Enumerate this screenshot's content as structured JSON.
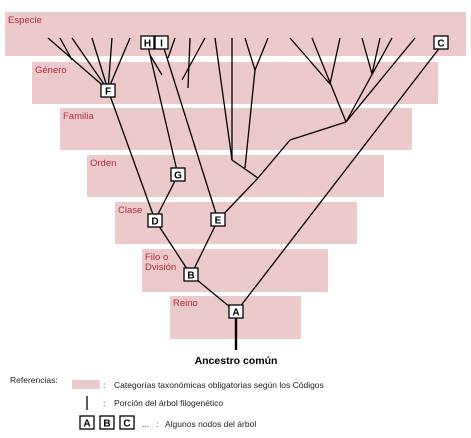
{
  "ranks": [
    {
      "id": "especie",
      "label": "Especie"
    },
    {
      "id": "genero",
      "label": "Género"
    },
    {
      "id": "familia",
      "label": "Familia"
    },
    {
      "id": "orden",
      "label": "Orden"
    },
    {
      "id": "clase",
      "label": "Clase"
    },
    {
      "id": "filo",
      "label_line1": "Filo o",
      "label_line2": "Dvisión"
    },
    {
      "id": "reino",
      "label": "Reino"
    }
  ],
  "nodes": {
    "A": "A",
    "B": "B",
    "C": "C",
    "D": "D",
    "E": "E",
    "F": "F",
    "G": "G",
    "H": "H",
    "I": "I"
  },
  "root_label": "Ancestro común",
  "legend": {
    "title": "Referencias:",
    "band_text": "Categorías taxonómicas obligatorias según los Códigos",
    "line_text": "Porción del árbol filogenético",
    "boxes": [
      "A",
      "B",
      "C"
    ],
    "ellipsis": "...",
    "nodes_text": "Algunos nodos del árbol",
    "colon": ":"
  },
  "colors": {
    "band": "#ecc9cb",
    "rank_label": "#b32b35",
    "line": "#000000"
  }
}
